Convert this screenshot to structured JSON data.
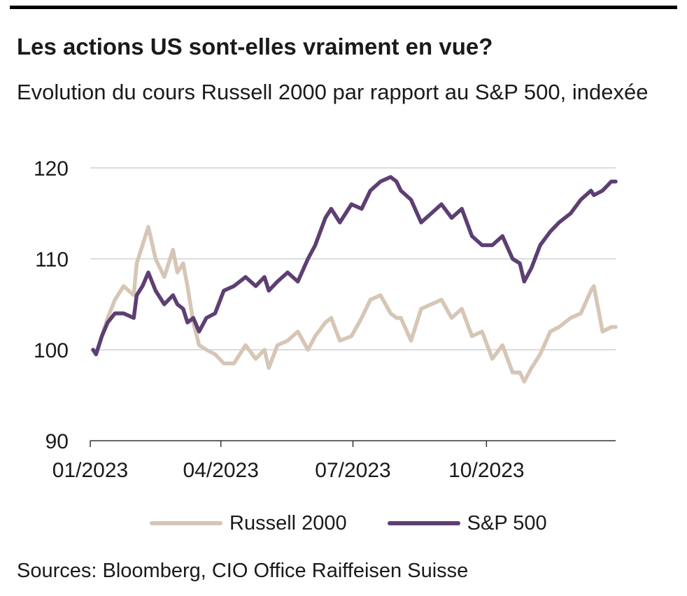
{
  "header": {
    "title": "Les actions US sont-elles vraiment en vue?",
    "subtitle": "Evolution du cours Russell 2000 par rapport au S&P 500, indexée"
  },
  "source": "Sources: Bloomberg, CIO Office Raiffeisen Suisse",
  "colors": {
    "russell": "#d6c6b6",
    "sp500": "#5d3f73",
    "grid": "#c8c8c8",
    "axis": "#333333"
  },
  "chart_data": {
    "type": "line",
    "title": "Les actions US sont-elles vraiment en vue?",
    "subtitle": "Evolution du cours Russell 2000 par rapport au S&P 500, indexée",
    "xlabel": "",
    "ylabel": "",
    "x_ticks": [
      "01/2023",
      "04/2023",
      "07/2023",
      "10/2023"
    ],
    "x_range": [
      "2023-01-01",
      "2023-12-29"
    ],
    "y_ticks": [
      90,
      100,
      110,
      120
    ],
    "ylim": [
      90,
      120
    ],
    "grid": "horizontal",
    "legend_position": "bottom",
    "series": [
      {
        "name": "Russell 2000",
        "color": "#d6c6b6",
        "x": [
          "2023-01-03",
          "2023-01-05",
          "2023-01-09",
          "2023-01-13",
          "2023-01-18",
          "2023-01-24",
          "2023-01-31",
          "2023-02-02",
          "2023-02-06",
          "2023-02-10",
          "2023-02-15",
          "2023-02-21",
          "2023-02-27",
          "2023-03-02",
          "2023-03-06",
          "2023-03-09",
          "2023-03-13",
          "2023-03-17",
          "2023-03-22",
          "2023-03-28",
          "2023-04-03",
          "2023-04-10",
          "2023-04-18",
          "2023-04-25",
          "2023-05-01",
          "2023-05-04",
          "2023-05-10",
          "2023-05-17",
          "2023-05-24",
          "2023-05-31",
          "2023-06-05",
          "2023-06-12",
          "2023-06-16",
          "2023-06-22",
          "2023-06-30",
          "2023-07-07",
          "2023-07-13",
          "2023-07-20",
          "2023-07-27",
          "2023-07-31",
          "2023-08-03",
          "2023-08-10",
          "2023-08-17",
          "2023-08-24",
          "2023-08-31",
          "2023-09-07",
          "2023-09-14",
          "2023-09-21",
          "2023-09-28",
          "2023-10-05",
          "2023-10-12",
          "2023-10-19",
          "2023-10-24",
          "2023-10-27",
          "2023-11-01",
          "2023-11-07",
          "2023-11-14",
          "2023-11-20",
          "2023-11-28",
          "2023-12-05",
          "2023-12-12",
          "2023-12-14",
          "2023-12-20",
          "2023-12-26",
          "2023-12-29"
        ],
        "values": [
          100.0,
          99.5,
          101.5,
          103.5,
          105.5,
          107.0,
          106.0,
          109.5,
          111.5,
          113.5,
          110.0,
          108.0,
          111.0,
          108.5,
          109.5,
          107.0,
          103.0,
          100.5,
          100.0,
          99.5,
          98.5,
          98.5,
          100.5,
          99.0,
          100.0,
          98.0,
          100.5,
          101.0,
          102.0,
          100.0,
          101.5,
          103.0,
          103.5,
          101.0,
          101.5,
          103.5,
          105.5,
          106.0,
          104.0,
          103.5,
          103.5,
          101.0,
          104.5,
          105.0,
          105.5,
          103.5,
          104.5,
          101.5,
          102.0,
          99.0,
          100.5,
          97.5,
          97.5,
          96.5,
          98.0,
          99.5,
          102.0,
          102.5,
          103.5,
          104.0,
          106.5,
          107.0,
          102.0,
          102.5,
          102.5
        ]
      },
      {
        "name": "S&P 500",
        "color": "#5d3f73",
        "x": [
          "2023-01-03",
          "2023-01-05",
          "2023-01-09",
          "2023-01-13",
          "2023-01-18",
          "2023-01-24",
          "2023-01-31",
          "2023-02-02",
          "2023-02-06",
          "2023-02-10",
          "2023-02-15",
          "2023-02-21",
          "2023-02-27",
          "2023-03-02",
          "2023-03-06",
          "2023-03-09",
          "2023-03-13",
          "2023-03-17",
          "2023-03-22",
          "2023-03-28",
          "2023-04-03",
          "2023-04-10",
          "2023-04-18",
          "2023-04-25",
          "2023-05-01",
          "2023-05-04",
          "2023-05-10",
          "2023-05-17",
          "2023-05-24",
          "2023-05-31",
          "2023-06-05",
          "2023-06-12",
          "2023-06-16",
          "2023-06-22",
          "2023-06-30",
          "2023-07-07",
          "2023-07-13",
          "2023-07-20",
          "2023-07-27",
          "2023-07-31",
          "2023-08-03",
          "2023-08-10",
          "2023-08-17",
          "2023-08-24",
          "2023-08-31",
          "2023-09-07",
          "2023-09-14",
          "2023-09-21",
          "2023-09-28",
          "2023-10-05",
          "2023-10-12",
          "2023-10-19",
          "2023-10-24",
          "2023-10-27",
          "2023-11-01",
          "2023-11-07",
          "2023-11-14",
          "2023-11-20",
          "2023-11-28",
          "2023-12-05",
          "2023-12-12",
          "2023-12-14",
          "2023-12-20",
          "2023-12-26",
          "2023-12-29"
        ],
        "values": [
          100.0,
          99.5,
          101.5,
          103.0,
          104.0,
          104.0,
          103.5,
          106.0,
          107.0,
          108.5,
          106.5,
          105.0,
          106.0,
          105.0,
          104.5,
          103.0,
          103.5,
          102.0,
          103.5,
          104.0,
          106.5,
          107.0,
          108.0,
          107.0,
          108.0,
          106.5,
          107.5,
          108.5,
          107.5,
          110.0,
          111.5,
          114.5,
          115.5,
          114.0,
          116.0,
          115.5,
          117.5,
          118.5,
          119.0,
          118.5,
          117.5,
          116.5,
          114.0,
          115.0,
          116.0,
          114.5,
          115.5,
          112.5,
          111.5,
          111.5,
          112.5,
          110.0,
          109.5,
          107.5,
          109.0,
          111.5,
          113.0,
          114.0,
          115.0,
          116.5,
          117.5,
          117.0,
          117.5,
          118.5,
          118.5
        ]
      }
    ]
  }
}
